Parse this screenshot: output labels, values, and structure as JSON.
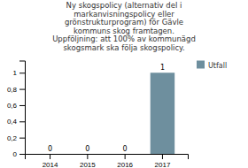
{
  "chart_data": {
    "type": "bar",
    "title": "Ny skogspolicy (alternativ del i\nmarkanvisningspolicy eller\ngrönstrukturprogram) för Gävle\nkommuns skog framtagen.\nUppföljning: att 100% av kommunägd\nskogsmark ska följa skogspolicy.",
    "categories": [
      "2014",
      "2015",
      "2016",
      "2017"
    ],
    "series": [
      {
        "name": "Utfall",
        "color": "#6e8f9e",
        "values": [
          0,
          0,
          0,
          1
        ]
      }
    ],
    "ylim": [
      0,
      1.15
    ],
    "yticks": [
      0,
      {
        "value": 0.2,
        "label": "0,2"
      },
      {
        "value": 0.4,
        "label": "0,4"
      },
      {
        "value": 0.6,
        "label": "0,6"
      },
      {
        "value": 0.8,
        "label": "0,8"
      },
      1
    ],
    "data_labels": true,
    "legend": "right"
  }
}
